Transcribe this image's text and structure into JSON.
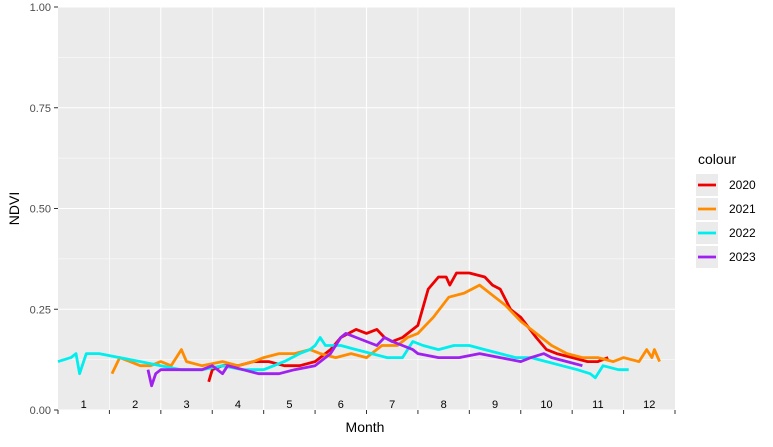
{
  "chart_data": {
    "type": "line",
    "xlabel": "Month",
    "ylabel": "NDVI",
    "ylim": [
      0,
      1
    ],
    "xlim": [
      0,
      12
    ],
    "y_ticks": [
      "0.00",
      "0.25",
      "0.50",
      "0.75",
      "1.00"
    ],
    "y_tick_values": [
      0,
      0.25,
      0.5,
      0.75,
      1.0
    ],
    "x_ticks": [
      "1",
      "2",
      "3",
      "4",
      "5",
      "6",
      "7",
      "8",
      "9",
      "10",
      "11",
      "12"
    ],
    "legend_title": "colour",
    "legend_position": "right",
    "grid": true,
    "series": [
      {
        "name": "2020",
        "color": "#ee0000",
        "points": [
          [
            2.93,
            0.07
          ],
          [
            3.0,
            0.1
          ],
          [
            3.2,
            0.11
          ],
          [
            3.5,
            0.11
          ],
          [
            3.8,
            0.12
          ],
          [
            4.1,
            0.12
          ],
          [
            4.4,
            0.11
          ],
          [
            4.7,
            0.11
          ],
          [
            5.0,
            0.12
          ],
          [
            5.3,
            0.15
          ],
          [
            5.5,
            0.18
          ],
          [
            5.8,
            0.2
          ],
          [
            6.0,
            0.19
          ],
          [
            6.2,
            0.2
          ],
          [
            6.35,
            0.18
          ],
          [
            6.5,
            0.17
          ],
          [
            6.7,
            0.18
          ],
          [
            7.0,
            0.21
          ],
          [
            7.2,
            0.3
          ],
          [
            7.4,
            0.33
          ],
          [
            7.55,
            0.33
          ],
          [
            7.62,
            0.31
          ],
          [
            7.75,
            0.34
          ],
          [
            8.0,
            0.34
          ],
          [
            8.3,
            0.33
          ],
          [
            8.45,
            0.31
          ],
          [
            8.6,
            0.3
          ],
          [
            8.8,
            0.25
          ],
          [
            9.0,
            0.23
          ],
          [
            9.3,
            0.18
          ],
          [
            9.5,
            0.15
          ],
          [
            9.7,
            0.14
          ],
          [
            10.0,
            0.13
          ],
          [
            10.3,
            0.12
          ],
          [
            10.5,
            0.12
          ],
          [
            10.7,
            0.13
          ]
        ]
      },
      {
        "name": "2021",
        "color": "#ff8c00",
        "points": [
          [
            1.05,
            0.09
          ],
          [
            1.2,
            0.13
          ],
          [
            1.4,
            0.12
          ],
          [
            1.6,
            0.11
          ],
          [
            1.8,
            0.11
          ],
          [
            2.0,
            0.12
          ],
          [
            2.2,
            0.11
          ],
          [
            2.4,
            0.15
          ],
          [
            2.5,
            0.12
          ],
          [
            2.8,
            0.11
          ],
          [
            3.2,
            0.12
          ],
          [
            3.5,
            0.11
          ],
          [
            3.8,
            0.12
          ],
          [
            4.0,
            0.13
          ],
          [
            4.3,
            0.14
          ],
          [
            4.6,
            0.14
          ],
          [
            4.9,
            0.15
          ],
          [
            5.1,
            0.14
          ],
          [
            5.4,
            0.13
          ],
          [
            5.7,
            0.14
          ],
          [
            6.0,
            0.13
          ],
          [
            6.3,
            0.16
          ],
          [
            6.6,
            0.16
          ],
          [
            6.8,
            0.18
          ],
          [
            7.0,
            0.19
          ],
          [
            7.3,
            0.23
          ],
          [
            7.6,
            0.28
          ],
          [
            7.9,
            0.29
          ],
          [
            8.2,
            0.31
          ],
          [
            8.5,
            0.28
          ],
          [
            8.7,
            0.26
          ],
          [
            9.0,
            0.22
          ],
          [
            9.3,
            0.19
          ],
          [
            9.6,
            0.16
          ],
          [
            9.9,
            0.14
          ],
          [
            10.2,
            0.13
          ],
          [
            10.5,
            0.13
          ],
          [
            10.8,
            0.12
          ],
          [
            11.0,
            0.13
          ],
          [
            11.3,
            0.12
          ],
          [
            11.45,
            0.15
          ],
          [
            11.55,
            0.13
          ],
          [
            11.6,
            0.15
          ],
          [
            11.7,
            0.12
          ]
        ]
      },
      {
        "name": "2022",
        "color": "#00eeee",
        "points": [
          [
            0.0,
            0.12
          ],
          [
            0.25,
            0.13
          ],
          [
            0.35,
            0.14
          ],
          [
            0.42,
            0.09
          ],
          [
            0.55,
            0.14
          ],
          [
            0.8,
            0.14
          ],
          [
            1.2,
            0.13
          ],
          [
            1.6,
            0.12
          ],
          [
            2.0,
            0.11
          ],
          [
            2.4,
            0.1
          ],
          [
            2.8,
            0.1
          ],
          [
            3.2,
            0.11
          ],
          [
            3.6,
            0.1
          ],
          [
            4.0,
            0.1
          ],
          [
            4.4,
            0.12
          ],
          [
            4.7,
            0.14
          ],
          [
            4.9,
            0.15
          ],
          [
            5.0,
            0.16
          ],
          [
            5.1,
            0.18
          ],
          [
            5.2,
            0.16
          ],
          [
            5.5,
            0.16
          ],
          [
            5.8,
            0.15
          ],
          [
            6.1,
            0.14
          ],
          [
            6.4,
            0.13
          ],
          [
            6.7,
            0.13
          ],
          [
            6.9,
            0.17
          ],
          [
            7.1,
            0.16
          ],
          [
            7.4,
            0.15
          ],
          [
            7.7,
            0.16
          ],
          [
            8.0,
            0.16
          ],
          [
            8.3,
            0.15
          ],
          [
            8.6,
            0.14
          ],
          [
            8.9,
            0.13
          ],
          [
            9.2,
            0.13
          ],
          [
            9.5,
            0.12
          ],
          [
            9.8,
            0.11
          ],
          [
            10.1,
            0.1
          ],
          [
            10.35,
            0.09
          ],
          [
            10.45,
            0.08
          ],
          [
            10.6,
            0.11
          ],
          [
            10.9,
            0.1
          ],
          [
            11.1,
            0.1
          ]
        ]
      },
      {
        "name": "2023",
        "color": "#a020f0",
        "points": [
          [
            1.75,
            0.1
          ],
          [
            1.82,
            0.06
          ],
          [
            1.9,
            0.09
          ],
          [
            2.0,
            0.1
          ],
          [
            2.2,
            0.1
          ],
          [
            2.5,
            0.1
          ],
          [
            2.8,
            0.1
          ],
          [
            3.0,
            0.11
          ],
          [
            3.2,
            0.09
          ],
          [
            3.3,
            0.11
          ],
          [
            3.6,
            0.1
          ],
          [
            3.9,
            0.09
          ],
          [
            4.3,
            0.09
          ],
          [
            4.6,
            0.1
          ],
          [
            5.0,
            0.11
          ],
          [
            5.3,
            0.14
          ],
          [
            5.5,
            0.18
          ],
          [
            5.6,
            0.19
          ],
          [
            5.8,
            0.18
          ],
          [
            6.0,
            0.17
          ],
          [
            6.2,
            0.16
          ],
          [
            6.35,
            0.18
          ],
          [
            6.5,
            0.17
          ],
          [
            6.7,
            0.16
          ],
          [
            6.9,
            0.15
          ],
          [
            7.0,
            0.14
          ],
          [
            7.4,
            0.13
          ],
          [
            7.8,
            0.13
          ],
          [
            8.2,
            0.14
          ],
          [
            8.6,
            0.13
          ],
          [
            9.0,
            0.12
          ],
          [
            9.2,
            0.13
          ],
          [
            9.45,
            0.14
          ],
          [
            9.6,
            0.13
          ],
          [
            9.9,
            0.12
          ],
          [
            10.2,
            0.11
          ]
        ]
      }
    ]
  }
}
